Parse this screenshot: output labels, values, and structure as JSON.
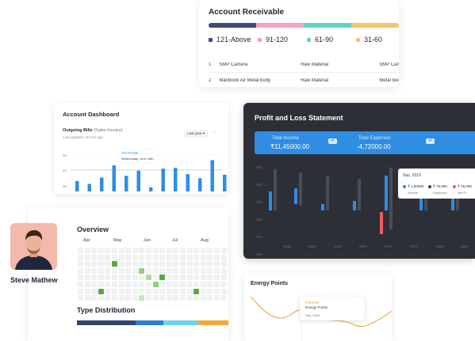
{
  "account_receivable": {
    "title": "Account Receivable",
    "bar_colors": [
      "#3f4a7a",
      "#f3a5bf",
      "#5fd6c4",
      "#f4c56c"
    ],
    "legend": [
      {
        "label": "121-Above",
        "color": "#3f4a7a"
      },
      {
        "label": "91-120",
        "color": "#f3a5bf"
      },
      {
        "label": "61-90",
        "color": "#5fd6c4"
      },
      {
        "label": "31-60",
        "color": "#f4c56c"
      }
    ],
    "rows": [
      {
        "num": "1",
        "item": "SMP Camera",
        "category": "Raw Material",
        "extra": "SMP Camera"
      },
      {
        "num": "2",
        "item": "MacBook Air Metal body",
        "category": "Raw Material",
        "extra": "Metal body"
      }
    ]
  },
  "account_dashboard": {
    "title": "Account Dashboard",
    "subtitle": "Outgoing Bills",
    "subtitle_note": "(Sales Invoice)",
    "updated": "Last updated: 40 min ago",
    "period": "Last year",
    "period_more": "⌄",
    "y_ticks": [
      "6K",
      "4K",
      "2K"
    ],
    "tooltip_value": "₹3779.60k",
    "tooltip_date": "Wednesday, June 16th",
    "bars": [
      0.3,
      0.22,
      0.4,
      0.75,
      0.45,
      0.6,
      0.12,
      0.66,
      0.68,
      0.5,
      0.38,
      0.9,
      0.48,
      0.15
    ],
    "accent": "#2f8de4"
  },
  "profit_loss": {
    "title": "Profit and Loss Statement",
    "total_income_label": "Total Income",
    "total_income_value": "₹11,45000.00",
    "total_expenses_label": "Total Expenses",
    "total_expenses_value": "-4,72000.00",
    "pill_icon": "⇄",
    "tooltip": {
      "date": "Sep, 2019",
      "items": [
        {
          "value": "₹ 1,50000",
          "label": "Income",
          "color": "#2f8de4"
        },
        {
          "value": "₹ 75,000",
          "label": "Expenses",
          "color": "#3a3d44"
        },
        {
          "value": "₹ 75,000",
          "label": "Net Pr",
          "color": "#f25c5c"
        }
      ]
    }
  },
  "overview": {
    "title": "Overview",
    "months": [
      "Apr",
      "May",
      "Jun",
      "Jul",
      "Aug"
    ],
    "type_distribution_title": "Type Distribution",
    "type_distribution": [
      {
        "share": 0.39,
        "color": "#2c4a6e"
      },
      {
        "share": 0.18,
        "color": "#2f7fd0"
      },
      {
        "share": 0.23,
        "color": "#6cd3ef"
      },
      {
        "share": 0.2,
        "color": "#f2a93b"
      }
    ]
  },
  "user": {
    "name": "Steve Mathew",
    "avatar_icon": "user-avatar-icon"
  },
  "energy_points": {
    "title": "Energy Points",
    "tooltip_value": "4760026",
    "tooltip_label": "Energy Points",
    "tooltip_date": "Sep, 2019",
    "accent": "#f0a22e"
  }
}
